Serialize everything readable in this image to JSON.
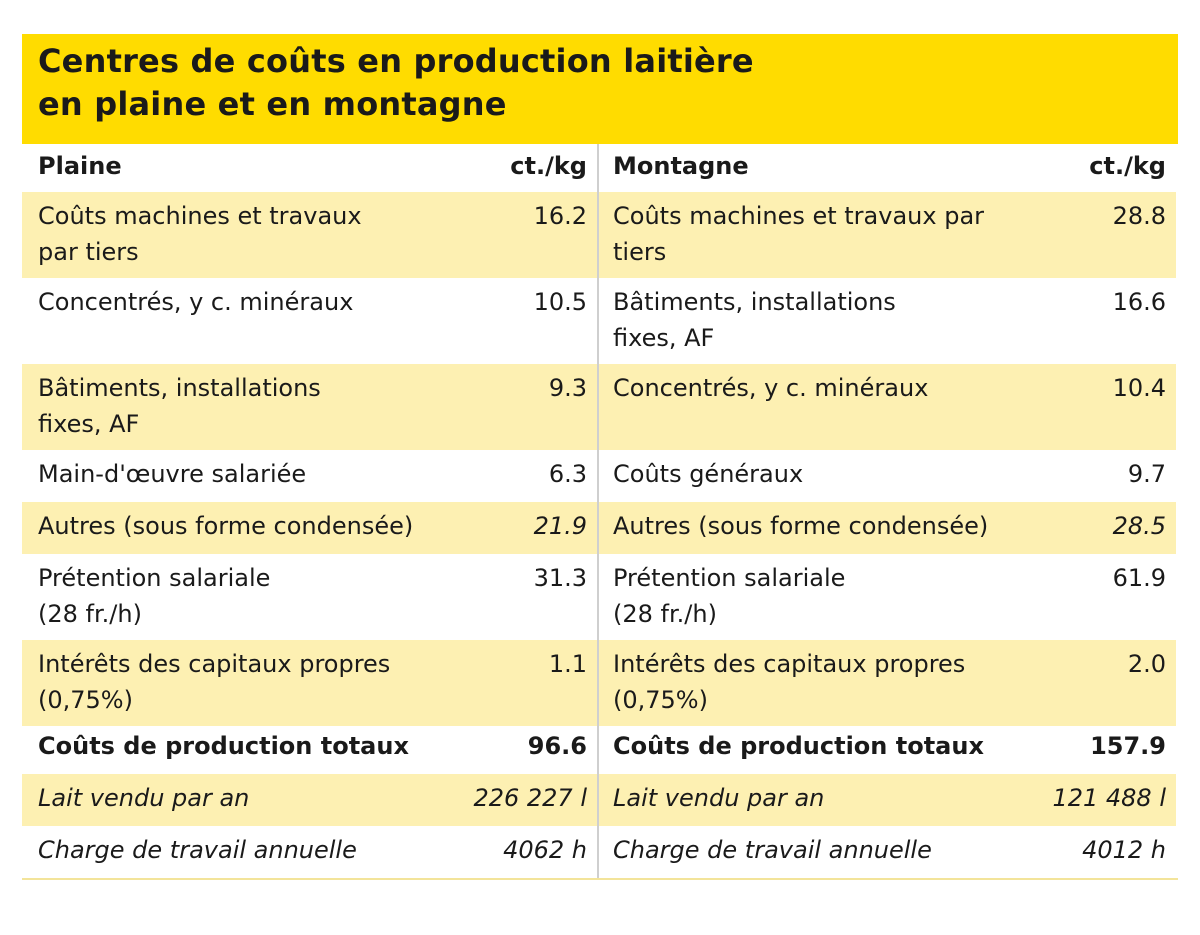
{
  "title": {
    "line1": "Centres de coûts en production laitière",
    "line2": "en plaine et en montagne"
  },
  "colors": {
    "title_band": "#ffdc00",
    "row_shade": "#fdf0b2",
    "column_divider": "#cfcfcf"
  },
  "plaine": {
    "header": {
      "label": "Plaine",
      "unit": "ct./kg"
    },
    "rows": [
      {
        "label": "Coûts machines et travaux\npar tiers",
        "value": "16.2"
      },
      {
        "label": "Concentrés, y c. minéraux",
        "value": "10.5"
      },
      {
        "label": "Bâtiments, installations\nfixes, AF",
        "value": "9.3"
      },
      {
        "label": "Main-d'œuvre salariée",
        "value": "6.3"
      },
      {
        "label": "Autres (sous forme condensée)",
        "value": "21.9"
      },
      {
        "label": "Prétention salariale\n(28 fr./h)",
        "value": "31.3"
      },
      {
        "label": "Intérêts des capitaux propres\n(0,75%)",
        "value": "1.1"
      },
      {
        "label": "Coûts de production totaux",
        "value": "96.6"
      },
      {
        "label": "Lait vendu par an",
        "value": "226 227 l"
      },
      {
        "label": "Charge de travail annuelle",
        "value": "4062 h"
      }
    ]
  },
  "montagne": {
    "header": {
      "label": "Montagne",
      "unit": "ct./kg"
    },
    "rows": [
      {
        "label": "Coûts machines et travaux par\ntiers",
        "value": "28.8"
      },
      {
        "label": "Bâtiments, installations\nfixes, AF",
        "value": "16.6"
      },
      {
        "label": "Concentrés, y c. minéraux",
        "value": "10.4"
      },
      {
        "label": "Coûts généraux",
        "value": "9.7"
      },
      {
        "label": "Autres (sous forme condensée)",
        "value": "28.5"
      },
      {
        "label": "Prétention salariale\n(28 fr./h)",
        "value": "61.9"
      },
      {
        "label": "Intérêts des capitaux propres\n(0,75%)",
        "value": "2.0"
      },
      {
        "label": "Coûts de production totaux",
        "value": "157.9"
      },
      {
        "label": "Lait vendu par an",
        "value": "121 488 l"
      },
      {
        "label": "Charge de travail annuelle",
        "value": "4012 h"
      }
    ]
  }
}
